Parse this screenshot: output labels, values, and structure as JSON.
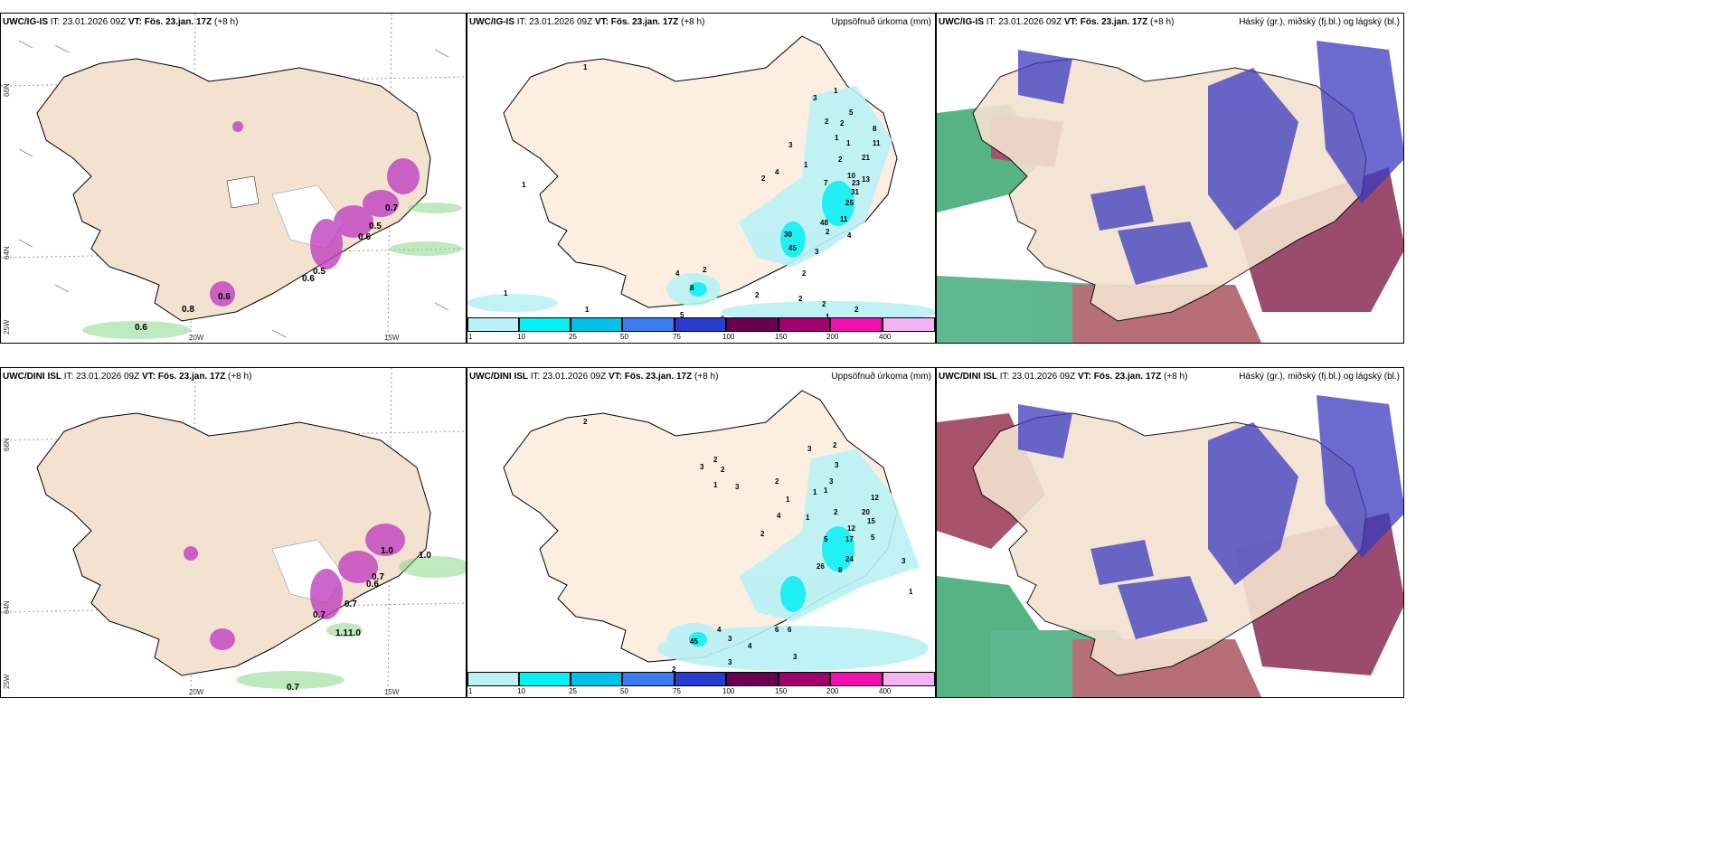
{
  "rows": [
    {
      "model": "UWC/IG-IS",
      "init": "IT: 23.01.2026 09Z",
      "valid_label": "VT:",
      "valid": "Fös. 23.jan. 17Z",
      "lead": "(+8 h)",
      "precip_values": [
        "2",
        "3",
        "1",
        "2",
        "3",
        "1",
        "1",
        "2",
        "5",
        "1",
        "8",
        "2",
        "11",
        "1",
        "2",
        "21",
        "1",
        "4",
        "10",
        "23",
        "2",
        "7",
        "13",
        "31",
        "25",
        "4",
        "48",
        "11",
        "30",
        "45",
        "8",
        "3",
        "4",
        "2",
        "1",
        "1",
        "1",
        "5",
        "6",
        "2",
        "2",
        "2",
        "4",
        "1",
        "2"
      ],
      "wind_values": [
        "0.5",
        "0.7",
        "0.6",
        "0.5",
        "0.6",
        "0.6",
        "0.8",
        "0.6"
      ]
    },
    {
      "model": "UWC/DINI ISL",
      "init": "IT: 23.01.2026 09Z",
      "valid_label": "VT:",
      "valid": "Fös. 23.jan. 17Z",
      "lead": "(+8 h)",
      "precip_values": [
        "2",
        "3",
        "2",
        "1",
        "3",
        "2",
        "1",
        "3",
        "3",
        "2",
        "1",
        "1",
        "3",
        "2",
        "12",
        "2",
        "4",
        "1",
        "2",
        "20",
        "15",
        "12",
        "5",
        "17",
        "5",
        "3",
        "26",
        "24",
        "8",
        "1",
        "45",
        "4",
        "3",
        "6",
        "6",
        "4",
        "2",
        "3",
        "3"
      ],
      "wind_values": [
        "1.0",
        "1.0",
        "0.6",
        "0.7",
        "0.7",
        "0.7",
        "1.1",
        "1.0",
        "0.7"
      ]
    }
  ],
  "labels": {
    "precip_title": "Uppsöfnuð úrkoma (mm)",
    "cloud_title": "Háský (gr.), miðský (fj.bl.) og lágský (bl.)"
  },
  "colorbar": {
    "ticks": [
      "1",
      "10",
      "25",
      "50",
      "75",
      "100",
      "150",
      "200",
      "400"
    ],
    "colors": [
      "#b9f1f5",
      "#05f0f5",
      "#00c2e8",
      "#3a7bf0",
      "#2a3bd0",
      "#6a0050",
      "#a0006e",
      "#f010b0",
      "#f4b4f4"
    ]
  },
  "axes": {
    "lat_top": "66N",
    "lat_mid": "64N",
    "lat_bot": "25W",
    "lon_left": "20W",
    "lon_right": "15W"
  },
  "colors": {
    "land": "#f3e2cf",
    "land_precip": "#fcefe2",
    "wind_land": "#ecd9c4"
  }
}
